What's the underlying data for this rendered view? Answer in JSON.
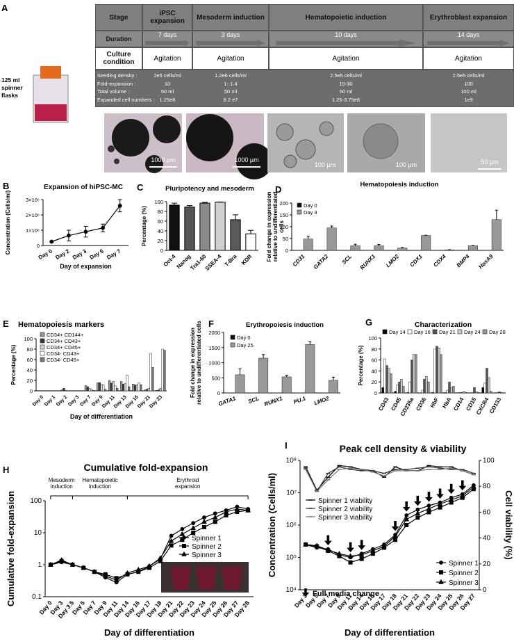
{
  "protocol": {
    "panel_label": "A",
    "flask_label": "125 ml spinner flasks",
    "header": [
      "Stage",
      "iPSC expansion",
      "Mesoderm induction",
      "Hematopoietic induction",
      "Erythroblast expansion"
    ],
    "duration": [
      "Duration",
      "7 days",
      "3 days",
      "10 days",
      "14 days"
    ],
    "culture": [
      "Culture condition",
      "Agitation",
      "Agitation",
      "Agitation",
      "Agitation"
    ],
    "details_labels": [
      "Seeding density :",
      "Fold-expansion :",
      "Total volume :",
      "Expanded cell numbers :"
    ],
    "details": [
      [
        "2e5 cells/ml",
        "10",
        "50 ml",
        "1.25e8"
      ],
      [
        "1.2e6 cells/ml",
        "1- 1.4",
        "50 ml",
        "8.2 e7"
      ],
      [
        "2.5e5 cells/ml",
        "10-30",
        "50 ml",
        "1.25-3.75e8"
      ],
      [
        "2.5e5 cells/ml",
        "100",
        "100 ml",
        "1e9"
      ]
    ],
    "scale_bars": [
      "1000 µm",
      "1000 µm",
      "100 µm",
      "100 µm",
      "50 µm"
    ]
  },
  "chart_data": [
    {
      "type": "line",
      "panel_label": "B",
      "title": "Expansion of hiPSC-MC",
      "xlabel": "Day of expansion",
      "ylabel": "Concentration (Cells/ml)",
      "categories": [
        "Day 0",
        "Day 2",
        "Day 3",
        "Day 5",
        "Day 7"
      ],
      "values": [
        250000,
        650000,
        900000,
        1150000,
        2600000
      ],
      "errors": [
        30000,
        350000,
        350000,
        250000,
        400000
      ],
      "color": "#000000",
      "marker": "circle",
      "ylim": [
        0,
        3000000
      ],
      "yticks": [
        0,
        {
          "value": 1000000,
          "label": "1×10⁶"
        },
        {
          "value": 2000000,
          "label": "2×10⁶"
        },
        {
          "value": 3000000,
          "label": "3×10⁶"
        }
      ]
    },
    {
      "type": "bar",
      "panel_label": "C",
      "title": "Pluripotency and mesoderm",
      "ylabel": "Percentage (%)",
      "categories": [
        "Oct-4",
        "Nanog",
        "Tra1-60",
        "SSEA-4",
        "T-Bra",
        "KDR"
      ],
      "values": [
        93,
        89,
        97,
        99,
        63,
        34
      ],
      "errors": [
        4,
        3,
        1.5,
        0.5,
        10,
        7
      ],
      "colors": [
        "#111111",
        "#555555",
        "#8a8a8a",
        "#d0d0d0",
        "#5a5a5a",
        "#ffffff"
      ],
      "ylim": [
        0,
        100
      ],
      "yticks": [
        0,
        20,
        40,
        60,
        80,
        100
      ]
    },
    {
      "type": "bar",
      "panel_label": "D",
      "title": "Hematopoiesis induction",
      "ylabel": [
        "Fold change in expression",
        "relative to undifferentiated",
        "cells"
      ],
      "italic_categories": true,
      "categories": [
        "CD31",
        "GATA2",
        "SCL",
        "RUNX1",
        "LMO2",
        "CDX1",
        "CDX4",
        "BMP4",
        "HoxA9"
      ],
      "series": [
        {
          "name": "Day 0",
          "color": "#111111",
          "values": [
            1,
            1,
            1,
            1,
            1,
            1,
            1,
            1,
            1
          ]
        },
        {
          "name": "Day 3",
          "color": "#999999",
          "values": [
            48,
            95,
            20,
            20,
            10,
            63,
            2,
            20,
            130
          ],
          "errors": [
            12,
            8,
            6,
            5,
            2,
            1,
            1,
            1,
            40
          ]
        }
      ],
      "ylim": [
        0,
        200
      ],
      "yticks": [
        0,
        50,
        100,
        150,
        200
      ]
    },
    {
      "type": "bar",
      "panel_label": "E",
      "title": "Hematopoiesis markers",
      "xlabel": "Day of differentiation",
      "ylabel": "Percentage (%)",
      "categories": [
        "Day 0",
        "Day 1",
        "Day 2",
        "Day 3",
        "Day 7",
        "Day 9",
        "Day 11",
        "Day 13",
        "Day 15",
        "Day 21",
        "Day 23"
      ],
      "series": [
        {
          "name": "CD34+ CD144+",
          "color": "#9a9a9a",
          "values": [
            0,
            0,
            2,
            0,
            10,
            15,
            20,
            18,
            13,
            2,
            1
          ]
        },
        {
          "name": "CD34+ CD43+",
          "color": "#3a3a3a",
          "values": [
            0,
            0,
            5,
            0,
            8,
            16,
            15,
            13,
            11,
            3,
            2
          ]
        },
        {
          "name": "CD34+ CD45+",
          "color": "#d5d5d5",
          "values": [
            0,
            0,
            1,
            0,
            5,
            12,
            18,
            14,
            12,
            5,
            5
          ]
        },
        {
          "name": "CD34- CD43+",
          "color": "#ffffff",
          "values": [
            0,
            0,
            0,
            0,
            3,
            12,
            10,
            30,
            15,
            72,
            80
          ]
        },
        {
          "name": "CD34- CD45+",
          "color": "#7a7a7a",
          "values": [
            0,
            0,
            0,
            0,
            1,
            3,
            5,
            8,
            12,
            45,
            78
          ]
        }
      ],
      "ylim": [
        0,
        100
      ],
      "yticks": [
        0,
        20,
        40,
        60,
        80,
        100
      ]
    },
    {
      "type": "bar",
      "panel_label": "F",
      "title": "Erythropoiesis induction",
      "ylabel": [
        "Fold change in expression",
        "relative to undifferentiated cells"
      ],
      "italic_categories": true,
      "categories": [
        "GATA1",
        "SCL",
        "RUNX1",
        "PU.1",
        "LMO2"
      ],
      "series": [
        {
          "name": "Day 0",
          "color": "#111111",
          "values": [
            1,
            1,
            1,
            1,
            1
          ]
        },
        {
          "name": "Day 25",
          "color": "#999999",
          "values": [
            600,
            1150,
            530,
            1600,
            420
          ],
          "errors": [
            200,
            120,
            60,
            90,
            100
          ]
        }
      ],
      "ylim": [
        0,
        2000
      ],
      "yticks": [
        0,
        500,
        1000,
        1500,
        2000
      ]
    },
    {
      "type": "bar",
      "panel_label": "G",
      "title": "Characterization",
      "ylabel": "Percentage (%)",
      "categories": [
        "CD43",
        "CD45",
        "CD235a",
        "CD36",
        "HbF",
        "HbA",
        "CD14",
        "CD15",
        "CXCR4",
        "CD133"
      ],
      "series": [
        {
          "name": "Day 14",
          "color": "#000000",
          "values": [
            10,
            3,
            1,
            0,
            1,
            1,
            0,
            0,
            10,
            0
          ]
        },
        {
          "name": "Day 16",
          "color": "#ffffff",
          "values": [
            62,
            15,
            20,
            5,
            80,
            5,
            1,
            1,
            18,
            1
          ]
        },
        {
          "name": "Day 21",
          "color": "#555555",
          "values": [
            50,
            20,
            60,
            25,
            85,
            20,
            1,
            10,
            45,
            2
          ]
        },
        {
          "name": "Day 24",
          "color": "#cccccc",
          "values": [
            45,
            25,
            70,
            30,
            82,
            10,
            3,
            2,
            28,
            1
          ]
        },
        {
          "name": "Day 28",
          "color": "#999999",
          "values": [
            35,
            12,
            70,
            20,
            70,
            12,
            1,
            1,
            3,
            0
          ]
        }
      ],
      "ylim": [
        0,
        100
      ],
      "yticks": [
        0,
        20,
        40,
        60,
        80,
        100
      ]
    },
    {
      "type": "line",
      "panel_label": "H",
      "title": "Cumulative fold-expansion",
      "xlabel": "Day of differentiation",
      "ylabel": "Cumulative fold-expansion",
      "ylog": true,
      "categories": [
        "Day 0",
        "Day 3",
        "Day 3.5",
        "Day 5",
        "Day 7",
        "Day 9",
        "Day 11",
        "Day 14",
        "Day 16",
        "Day 17",
        "Day 18",
        "Day 21",
        "Day 22",
        "Day 23",
        "Day 24",
        "Day 25",
        "Day 26",
        "Day 27",
        "Day 28"
      ],
      "phases": [
        {
          "label": [
            "Mesoderm",
            "induction"
          ],
          "from": "Day 0",
          "to": "Day 3.5"
        },
        {
          "label": [
            "Hematopoietic",
            "induction"
          ],
          "from": "Day 3.5",
          "to": "Day 14"
        },
        {
          "label": [
            "Erythroid",
            "expansion"
          ],
          "from": "Day 14",
          "to": "Day 28"
        }
      ],
      "series": [
        {
          "name": "Spinner 1",
          "color": "#000000",
          "marker": "circle",
          "values": [
            1,
            1.2,
            1,
            0.8,
            0.6,
            0.4,
            0.28,
            0.5,
            0.6,
            0.9,
            1.5,
            8,
            13,
            20,
            30,
            40,
            50,
            65,
            55
          ]
        },
        {
          "name": "Spinner 2",
          "color": "#000000",
          "marker": "square",
          "values": [
            1,
            1.3,
            1,
            0.8,
            0.6,
            0.5,
            0.38,
            0.5,
            0.6,
            0.8,
            1.3,
            4,
            6,
            10,
            15,
            22,
            35,
            45,
            50
          ]
        },
        {
          "name": "Spinner 3",
          "color": "#000000",
          "marker": "triangle",
          "values": [
            1,
            1.4,
            1,
            0.8,
            0.6,
            0.45,
            0.33,
            0.55,
            0.7,
            0.9,
            1.6,
            5.5,
            9,
            14,
            22,
            30,
            45,
            55,
            50
          ]
        }
      ],
      "ylim": [
        0.1,
        100
      ],
      "yticks": [
        0.1,
        1,
        10,
        100
      ]
    },
    {
      "type": "line",
      "panel_label": "I",
      "title": "Peak cell density & viability",
      "xlabel": "Day of differentiation",
      "ylabel": "Concentration (Cells/ml)",
      "y2label": "Cell viability (%)",
      "ylog": true,
      "categories": [
        "Day 3",
        "Day 5",
        "Day 7",
        "Day 9",
        "Day 11",
        "Day 14",
        "Day 16",
        "Day 17",
        "Day 18",
        "Day 21",
        "Day 22",
        "Day 23",
        "Day 24",
        "Day 25",
        "Day 26",
        "Day 27"
      ],
      "series": [
        {
          "name": "Spinner 1 viability",
          "color": "#000000",
          "marker": "dash",
          "axis": "y2",
          "values": [
            95,
            77,
            87,
            96,
            95,
            93,
            92,
            87,
            95,
            92,
            92,
            96,
            95,
            95,
            92,
            89
          ]
        },
        {
          "name": "Spinner 2 viability",
          "color": "#333333",
          "marker": "dash",
          "axis": "y2",
          "values": [
            94,
            76,
            90,
            95,
            93,
            92,
            92,
            90,
            93,
            93,
            94,
            95,
            94,
            93,
            93,
            90
          ]
        },
        {
          "name": "Spinner 3 viability",
          "color": "#777777",
          "marker": "dash",
          "axis": "y2",
          "values": [
            93,
            76,
            85,
            93,
            94,
            93,
            91,
            88,
            92,
            92,
            92,
            93,
            93,
            94,
            92,
            89
          ]
        },
        {
          "name": "Spinner 1",
          "color": "#000000",
          "marker": "circle",
          "values": [
            250000,
            200000,
            180000,
            120000,
            100000,
            130000,
            180000,
            250000,
            500000,
            2000000,
            3000000,
            4000000,
            5000000,
            7000000,
            9000000,
            17000000
          ]
        },
        {
          "name": "Spinner 2",
          "color": "#000000",
          "marker": "square",
          "values": [
            250000,
            220000,
            160000,
            110000,
            70000,
            90000,
            130000,
            200000,
            350000,
            1000000,
            1700000,
            2500000,
            3500000,
            5000000,
            7000000,
            13000000
          ]
        },
        {
          "name": "Spinner 3",
          "color": "#000000",
          "marker": "triangle",
          "values": [
            250000,
            230000,
            170000,
            130000,
            110000,
            120000,
            160000,
            220000,
            450000,
            1500000,
            2300000,
            3200000,
            4500000,
            6000000,
            8000000,
            15000000
          ]
        }
      ],
      "media_change": {
        "label": "Full media change",
        "at": [
          "Day 7",
          "Day 11",
          "Day 14",
          "Day 18",
          "Day 21",
          "Day 22",
          "Day 23",
          "Day 24",
          "Day 25",
          "Day 26"
        ]
      },
      "ylim": [
        10000,
        100000000
      ],
      "yticks": [
        {
          "value": 10000,
          "label": "10⁴"
        },
        {
          "value": 100000,
          "label": "10⁵"
        },
        {
          "value": 1000000,
          "label": "10⁶"
        },
        {
          "value": 10000000,
          "label": "10⁷"
        },
        {
          "value": 100000000,
          "label": "10⁸"
        }
      ],
      "y2lim": [
        0,
        100
      ],
      "y2ticks": [
        0,
        20,
        40,
        60,
        80,
        100
      ]
    }
  ]
}
